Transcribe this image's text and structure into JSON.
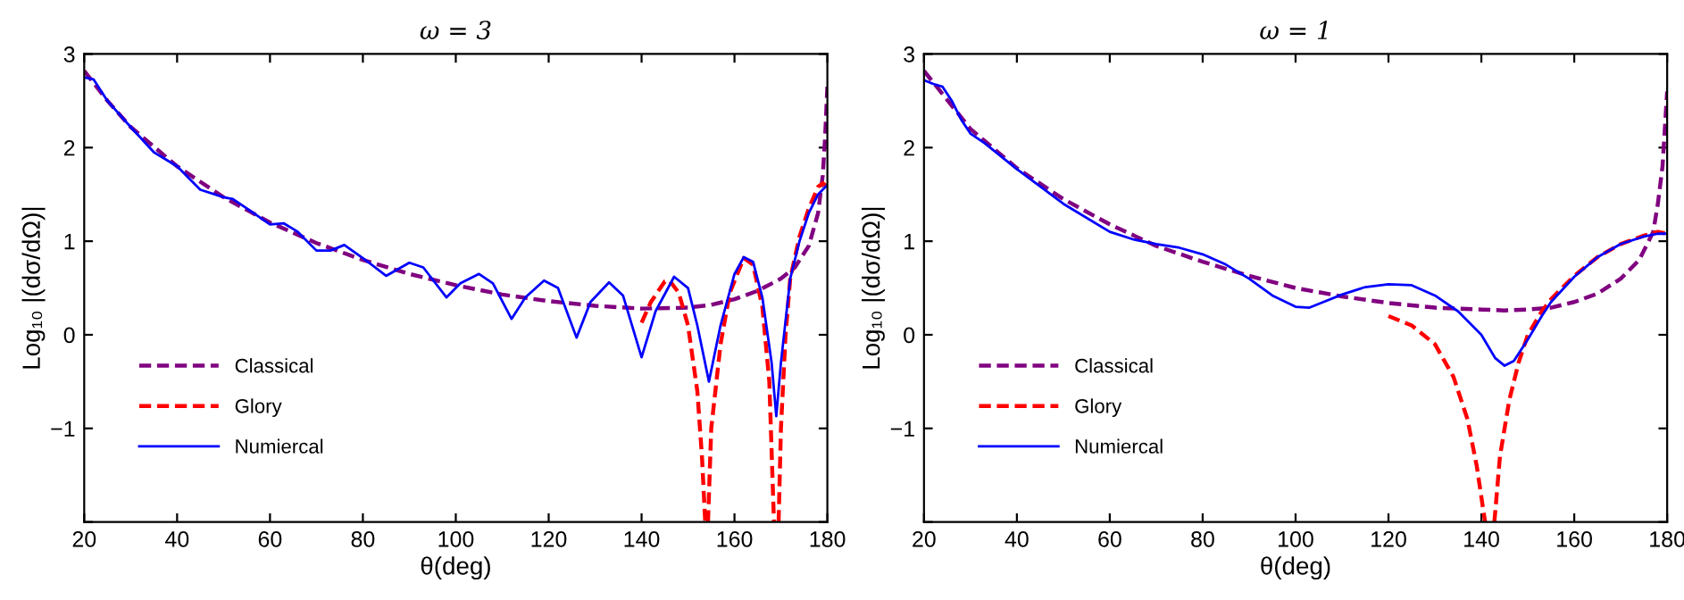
{
  "chart_data": [
    {
      "type": "line",
      "title": "ω = 3",
      "xlabel": "θ(deg)",
      "ylabel": "Log₁₀ |(dσ/dΩ)|",
      "xlim": [
        20,
        180
      ],
      "ylim": [
        -2,
        3
      ],
      "xticks": [
        20,
        40,
        60,
        80,
        100,
        120,
        140,
        160,
        180
      ],
      "yticks": [
        {
          "value": -2,
          "label": null
        },
        -1,
        0,
        1,
        2,
        3
      ],
      "legend": "bottom left",
      "grid": false,
      "marker": "none",
      "series": [
        {
          "name": "Classical",
          "color": "#800080",
          "line_style": "dashed",
          "x": [
            20,
            25,
            30,
            40,
            50,
            60,
            70,
            80,
            90,
            100,
            110,
            120,
            130,
            140,
            150,
            155,
            160,
            165,
            170,
            173,
            176,
            178,
            179,
            179.5,
            180
          ],
          "values": [
            2.82,
            2.5,
            2.22,
            1.8,
            1.47,
            1.2,
            0.98,
            0.8,
            0.65,
            0.53,
            0.43,
            0.36,
            0.31,
            0.28,
            0.29,
            0.32,
            0.38,
            0.47,
            0.6,
            0.72,
            0.95,
            1.3,
            1.7,
            2.1,
            2.65
          ]
        },
        {
          "name": "Glory",
          "color": "#ff0000",
          "line_style": "dashed",
          "x": [
            140,
            142,
            145,
            146,
            148,
            150,
            152,
            153,
            153.7,
            154,
            154.3,
            155,
            157,
            159,
            162,
            164,
            166,
            167.5,
            168.5,
            169,
            169.5,
            170,
            171,
            172,
            174,
            176,
            178,
            179,
            180
          ],
          "values": [
            0.13,
            0.35,
            0.57,
            0.58,
            0.45,
            0.1,
            -0.6,
            -1.3,
            -2,
            null,
            -2,
            -1.0,
            -0.1,
            0.45,
            0.82,
            0.75,
            0.3,
            -0.5,
            -2,
            null,
            -2,
            -1,
            0,
            0.6,
            1.05,
            1.35,
            1.58,
            1.62,
            1.58
          ]
        },
        {
          "name": "Numiercal",
          "color": "#0000ff",
          "line_style": "solid",
          "x": [
            20,
            22,
            25,
            30,
            35,
            40,
            45,
            50,
            52,
            55,
            60,
            63,
            66,
            70,
            73,
            76,
            80,
            85,
            90,
            93,
            98,
            101,
            105,
            108,
            112,
            115,
            119,
            122,
            126,
            129,
            133,
            136,
            140,
            143,
            147,
            150,
            152,
            154.5,
            157,
            160,
            162,
            164,
            166,
            168,
            169,
            170,
            172,
            174,
            176,
            178,
            180
          ],
          "values": [
            2.75,
            2.73,
            2.5,
            2.22,
            1.95,
            1.8,
            1.55,
            1.47,
            1.45,
            1.35,
            1.18,
            1.19,
            1.1,
            0.9,
            0.9,
            0.96,
            0.82,
            0.63,
            0.77,
            0.72,
            0.4,
            0.55,
            0.65,
            0.55,
            0.17,
            0.4,
            0.58,
            0.5,
            -0.03,
            0.35,
            0.56,
            0.42,
            -0.24,
            0.25,
            0.62,
            0.5,
            0.1,
            -0.5,
            0.1,
            0.65,
            0.83,
            0.78,
            0.4,
            -0.3,
            -0.87,
            -0.3,
            0.6,
            1.0,
            1.3,
            1.5,
            1.6
          ]
        }
      ]
    },
    {
      "type": "line",
      "title": "ω = 1",
      "xlabel": "θ(deg)",
      "ylabel": "Log₁₀ |(dσ/dΩ)|",
      "xlim": [
        20,
        180
      ],
      "ylim": [
        -2,
        3
      ],
      "xticks": [
        20,
        40,
        60,
        80,
        100,
        120,
        140,
        160,
        180
      ],
      "yticks": [
        {
          "value": -2,
          "label": null
        },
        -1,
        0,
        1,
        2,
        3
      ],
      "legend": "bottom left",
      "grid": false,
      "marker": "none",
      "series": [
        {
          "name": "Classical",
          "color": "#800080",
          "line_style": "dashed",
          "x": [
            20,
            30,
            40,
            50,
            60,
            70,
            80,
            90,
            100,
            110,
            120,
            130,
            140,
            145,
            150,
            155,
            160,
            165,
            170,
            174,
            177,
            178,
            179,
            180
          ],
          "values": [
            2.82,
            2.2,
            1.78,
            1.45,
            1.18,
            0.95,
            0.78,
            0.63,
            0.5,
            0.41,
            0.34,
            0.29,
            0.27,
            0.26,
            0.27,
            0.29,
            0.35,
            0.44,
            0.6,
            0.8,
            1.1,
            1.4,
            1.8,
            2.6
          ]
        },
        {
          "name": "Glory",
          "color": "#ff0000",
          "line_style": "dashed",
          "x": [
            120,
            125,
            130,
            134,
            137,
            139,
            140.8,
            141.8,
            142.8,
            144,
            146,
            148,
            150,
            153,
            155,
            160,
            165,
            170,
            175,
            178,
            180
          ],
          "values": [
            0.2,
            0.1,
            -0.1,
            -0.45,
            -0.9,
            -1.4,
            -2,
            null,
            -2,
            -1.3,
            -0.7,
            -0.3,
            0.0,
            0.25,
            0.38,
            0.63,
            0.83,
            0.97,
            1.06,
            1.1,
            1.08
          ]
        },
        {
          "name": "Numiercal",
          "color": "#0000ff",
          "line_style": "solid",
          "x": [
            20,
            22,
            24,
            26,
            28,
            30,
            33,
            40,
            50,
            60,
            65,
            70,
            75,
            80,
            85,
            90,
            95,
            100,
            103,
            106,
            110,
            115,
            120,
            125,
            130,
            135,
            140,
            143,
            145,
            147,
            150,
            153,
            155,
            160,
            165,
            170,
            175,
            178,
            180
          ],
          "values": [
            2.72,
            2.68,
            2.65,
            2.5,
            2.3,
            2.15,
            2.05,
            1.77,
            1.4,
            1.1,
            1.02,
            0.97,
            0.93,
            0.86,
            0.75,
            0.6,
            0.42,
            0.3,
            0.29,
            0.35,
            0.43,
            0.51,
            0.54,
            0.53,
            0.42,
            0.25,
            0.0,
            -0.25,
            -0.33,
            -0.28,
            -0.05,
            0.2,
            0.35,
            0.62,
            0.83,
            0.97,
            1.05,
            1.08,
            1.08
          ]
        }
      ]
    }
  ]
}
